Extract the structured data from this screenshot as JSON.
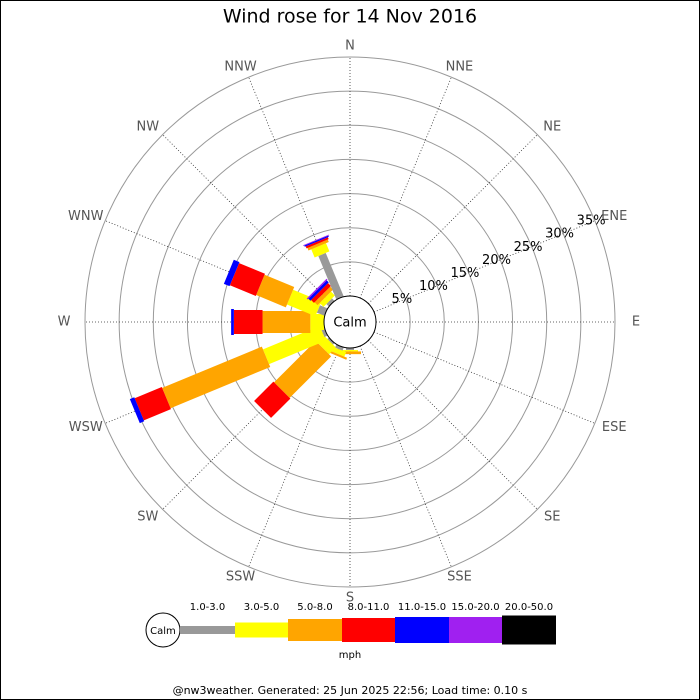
{
  "chart_data": {
    "type": "windrose",
    "title": "Wind rose for 14 Nov 2016",
    "calm_label": "Calm",
    "unit_label": "mph",
    "footer": "@nw3weather. Generated: 25 Jun 2025 22:56; Load time: 0.10 s",
    "categories": [
      "N",
      "NNE",
      "NE",
      "ENE",
      "E",
      "ESE",
      "SE",
      "SSE",
      "S",
      "SSW",
      "SW",
      "WSW",
      "W",
      "WNW",
      "NW",
      "NNW"
    ],
    "ylim": [
      0,
      35
    ],
    "yticks": [
      {
        "value": 5,
        "label": "5%"
      },
      {
        "value": 10,
        "label": "10%"
      },
      {
        "value": 15,
        "label": "15%"
      },
      {
        "value": 20,
        "label": "20%"
      },
      {
        "value": 25,
        "label": "25%"
      },
      {
        "value": 30,
        "label": "30%"
      },
      {
        "value": 35,
        "label": "35%"
      }
    ],
    "series": [
      {
        "name": "1.0-3.0",
        "color": "#999999",
        "values": [
          0,
          0,
          0,
          0,
          0,
          0,
          0,
          0,
          0.3,
          0.5,
          0.3,
          0.5,
          0,
          1.2,
          0.5,
          6.9
        ]
      },
      {
        "name": "3.0-5.0",
        "color": "#ffff00",
        "values": [
          0,
          0,
          0,
          0,
          0,
          0,
          0,
          0,
          0.2,
          0.7,
          1.4,
          9.0,
          2.0,
          4.5,
          0.8,
          1.3
        ]
      },
      {
        "name": "5.0-8.0",
        "color": "#ffa500",
        "values": [
          0,
          0,
          0,
          0,
          0,
          0,
          0,
          0,
          0.4,
          0.3,
          8.6,
          15.8,
          7.0,
          4.7,
          0.6,
          0.4
        ]
      },
      {
        "name": "8.0-11.0",
        "color": "#ff0000",
        "values": [
          0,
          0,
          0,
          0,
          0,
          0,
          0,
          0,
          0,
          0,
          4.0,
          4.3,
          4.2,
          4.1,
          0.6,
          0.3
        ]
      },
      {
        "name": "11.0-15.0",
        "color": "#0000ff",
        "values": [
          0,
          0,
          0,
          0,
          0,
          0,
          0,
          0,
          0,
          0,
          0,
          0.7,
          0.4,
          0.9,
          0.4,
          0.2
        ]
      },
      {
        "name": "15.0-20.0",
        "color": "#a020f0",
        "values": [
          0,
          0,
          0,
          0,
          0,
          0,
          0,
          0,
          0,
          0,
          0,
          0,
          0,
          0,
          0.2,
          0.1
        ]
      },
      {
        "name": "20.0-50.0",
        "color": "#000000",
        "values": [
          0,
          0,
          0,
          0,
          0,
          0,
          0,
          0,
          0,
          0,
          0,
          0,
          0,
          0,
          0,
          0
        ]
      }
    ]
  }
}
